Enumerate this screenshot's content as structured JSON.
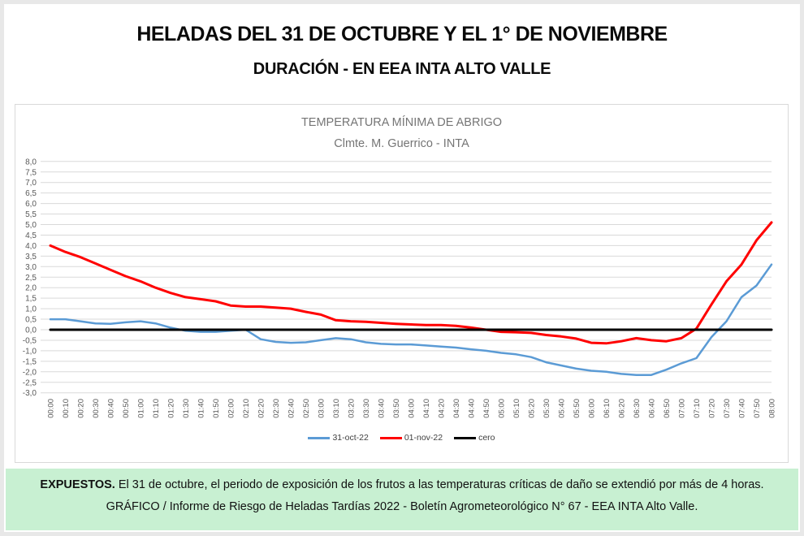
{
  "header": {
    "title": "HELADAS DEL 31 DE OCTUBRE Y EL 1° DE NOVIEMBRE",
    "subtitle": "DURACIÓN - EN EEA INTA ALTO VALLE"
  },
  "chart_data": {
    "type": "line",
    "title": "TEMPERATURA MÍNIMA DE ABRIGO",
    "subtitle": "Clmte. M. Guerrico - INTA",
    "xlabel": "",
    "ylabel": "",
    "ylim": [
      -3.0,
      8.0
    ],
    "ytick_step": 0.5,
    "grid": true,
    "legend_position": "bottom",
    "ytick_labels": [
      "8,0",
      "7,5",
      "7,0",
      "6,5",
      "6,0",
      "5,5",
      "5,0",
      "4,5",
      "4,0",
      "3,5",
      "3,0",
      "2,5",
      "2,0",
      "1,5",
      "1,0",
      "0,5",
      "0,0",
      "-0,5",
      "-1,0",
      "-1,5",
      "-2,0",
      "-2,5",
      "-3,0"
    ],
    "x": [
      "00:00",
      "00:10",
      "00:20",
      "00:30",
      "00:40",
      "00:50",
      "01:00",
      "01:10",
      "01:20",
      "01:30",
      "01:40",
      "01:50",
      "02:00",
      "02:10",
      "02:20",
      "02:30",
      "02:40",
      "02:50",
      "03:00",
      "03:10",
      "03:20",
      "03:30",
      "03:40",
      "03:50",
      "04:00",
      "04:10",
      "04:20",
      "04:30",
      "04:40",
      "04:50",
      "05:00",
      "05:10",
      "05:20",
      "05:30",
      "05:40",
      "05:50",
      "06:00",
      "06:10",
      "06:20",
      "06:30",
      "06:40",
      "06:50",
      "07:00",
      "07:10",
      "07:20",
      "07:30",
      "07:40",
      "07:50",
      "08:00"
    ],
    "series": [
      {
        "name": "31-oct-22",
        "color": "#5b9bd5",
        "values": [
          0.5,
          0.5,
          0.4,
          0.3,
          0.28,
          0.35,
          0.4,
          0.3,
          0.1,
          -0.05,
          -0.1,
          -0.1,
          -0.05,
          0.0,
          -0.45,
          -0.58,
          -0.62,
          -0.6,
          -0.5,
          -0.4,
          -0.45,
          -0.6,
          -0.67,
          -0.7,
          -0.7,
          -0.75,
          -0.8,
          -0.85,
          -0.93,
          -1.0,
          -1.1,
          -1.17,
          -1.3,
          -1.55,
          -1.7,
          -1.85,
          -1.95,
          -2.0,
          -2.1,
          -2.15,
          -2.15,
          -1.9,
          -1.6,
          -1.35,
          -0.35,
          0.4,
          1.55,
          2.1,
          3.1
        ]
      },
      {
        "name": "01-nov-22",
        "color": "#ff0000",
        "values": [
          4.0,
          3.7,
          3.45,
          3.15,
          2.85,
          2.55,
          2.3,
          2.0,
          1.75,
          1.55,
          1.45,
          1.35,
          1.15,
          1.1,
          1.1,
          1.05,
          1.0,
          0.85,
          0.72,
          0.45,
          0.4,
          0.38,
          0.33,
          0.28,
          0.25,
          0.22,
          0.22,
          0.18,
          0.1,
          0.0,
          -0.1,
          -0.12,
          -0.15,
          -0.25,
          -0.32,
          -0.42,
          -0.62,
          -0.65,
          -0.55,
          -0.4,
          -0.5,
          -0.55,
          -0.4,
          0.05,
          1.2,
          2.3,
          3.1,
          4.25,
          5.1
        ]
      },
      {
        "name": "cero",
        "color": "#000000",
        "constant": 0
      }
    ]
  },
  "banner": {
    "label": "EXPUESTOS.",
    "line1": "El 31 de octubre, el periodo de exposición de los frutos a las temperaturas críticas de daño se extendió por más de 4 horas.",
    "line2": "GRÁFICO / Informe de Riesgo de Heladas Tardías 2022 - Boletín Agrometeorológico N° 67 - EEA INTA Alto Valle."
  },
  "colors": {
    "grid": "#d9d9d9",
    "axis_text": "#595959",
    "chart_title_text": "#757575",
    "banner_bg": "#c8f0d2",
    "panel_border": "#d9d9d9",
    "outer_border": "#e8e8e8"
  }
}
